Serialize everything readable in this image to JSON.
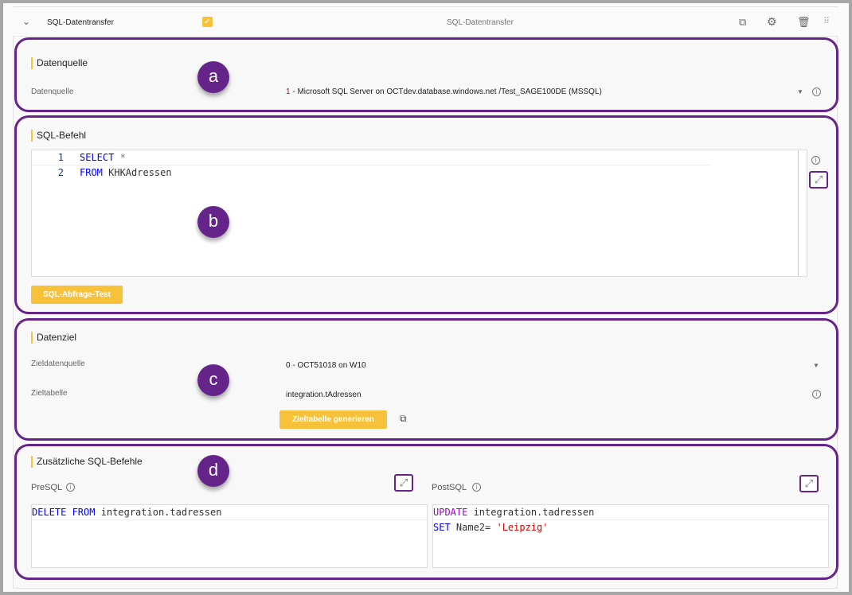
{
  "header": {
    "title": "SQL-Datentransfer",
    "center_title": "SQL-Datentransfer",
    "enabled": true
  },
  "markers": {
    "a": "a",
    "b": "b",
    "c": "c",
    "d": "d"
  },
  "datasource": {
    "section_title": "Datenquelle",
    "label": "Datenquelle",
    "value_prefix": "1",
    "value": " - Microsoft SQL Server on OCTdev.database.windows.net /Test_SAGE100DE (MSSQL)"
  },
  "sql": {
    "section_title": "SQL-Befehl",
    "lines": [
      {
        "num": "1",
        "kw": "SELECT",
        "rest": " *"
      },
      {
        "num": "2",
        "kw": "FROM",
        "rest": " KHKAdressen"
      }
    ],
    "test_button": "SQL-Abfrage-Test"
  },
  "target": {
    "section_title": "Datenziel",
    "source_label": "Zieldatenquelle",
    "source_value": "0 - OCT51018 on W10",
    "table_label": "Zieltabelle",
    "table_value": "integration.tAdressen",
    "generate_button": "Zieltabelle generieren"
  },
  "extra": {
    "section_title": "Zusätzliche SQL-Befehle",
    "pre_label": "PreSQL",
    "post_label": "PostSQL",
    "pre_line": {
      "kw": "DELETE FROM",
      "rest": " integration.tadressen"
    },
    "post_lines": [
      {
        "kw": "UPDATE",
        "rest": " integration.tadressen"
      },
      {
        "kw": "SET",
        "rest": " Name2= ",
        "str": "'Leipzig'"
      }
    ]
  },
  "colors": {
    "accent": "#f8c13a",
    "highlight": "#65248a"
  }
}
